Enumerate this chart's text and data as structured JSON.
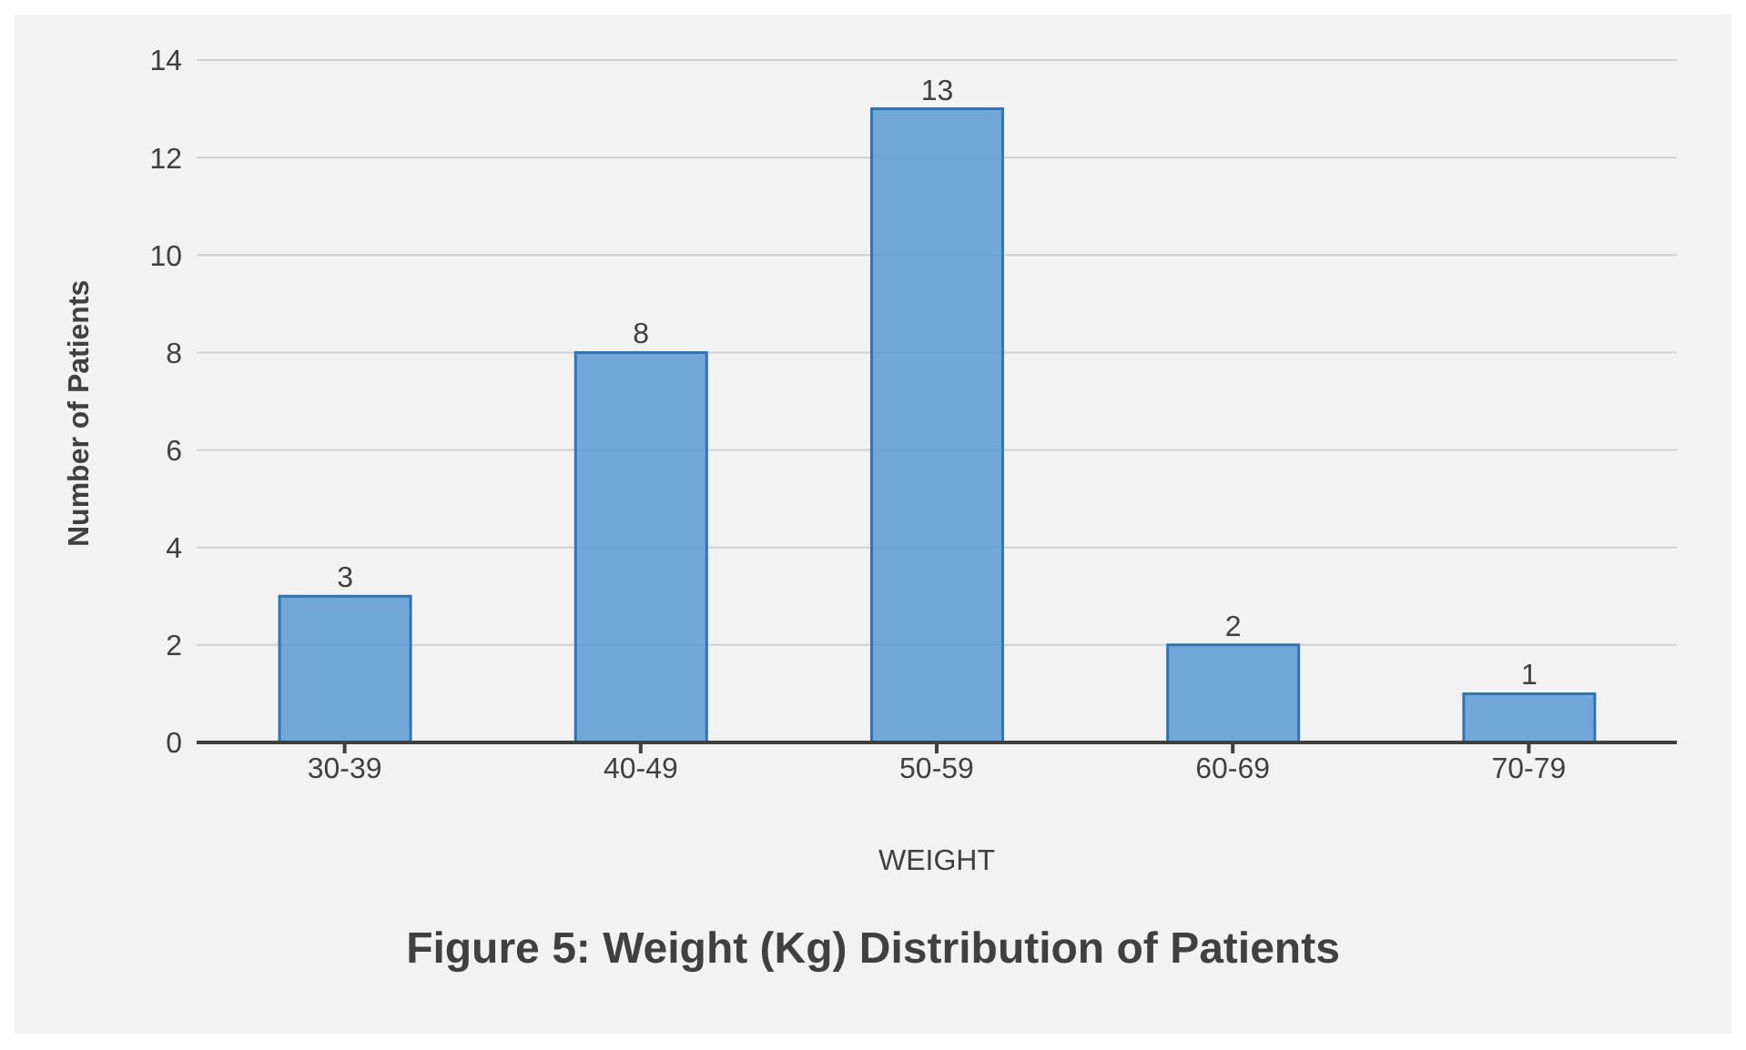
{
  "chart_data": {
    "type": "bar",
    "title": "Figure 5: Weight (Kg) Distribution of Patients",
    "xlabel": "WEIGHT",
    "ylabel": "Number of Patients",
    "categories": [
      "30-39",
      "40-49",
      "50-59",
      "60-69",
      "70-79"
    ],
    "values": [
      3,
      8,
      13,
      2,
      1
    ],
    "color": "#5b9bd5",
    "ylim": [
      0,
      14
    ],
    "yticks": [
      0,
      2,
      4,
      6,
      8,
      10,
      12,
      14
    ],
    "grid": "y",
    "data_labels": true
  }
}
